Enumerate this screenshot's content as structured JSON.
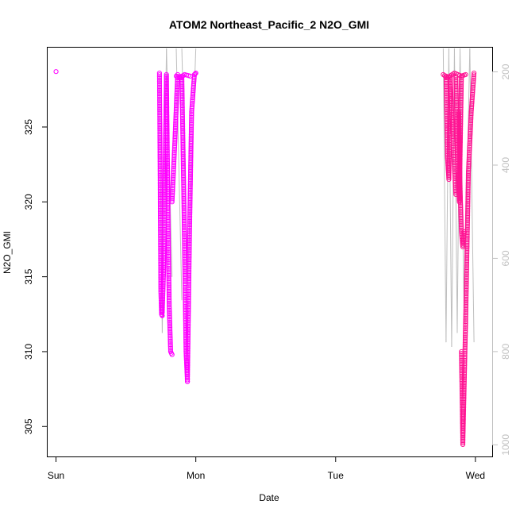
{
  "chart_data": {
    "type": "scatter",
    "title": "ATOM2 Northeast_Pacific_2 N2O_GMI",
    "xlabel": "Date",
    "ylabel": "N2O_GMI",
    "x_ticks": [
      "Sun",
      "Mon",
      "Tue",
      "Wed"
    ],
    "y_ticks": [
      305,
      310,
      315,
      320,
      325
    ],
    "y2_ticks": [
      200,
      400,
      600,
      800,
      1000
    ],
    "xlim_days": [
      -0.06,
      3.12
    ],
    "ylim": [
      303.0,
      330.3
    ],
    "y2lim": [
      148,
      1025
    ],
    "y2_inverted": true,
    "colors": {
      "early": "#ff00ff",
      "late": "#ff1493",
      "pressure_line": "#bebebe"
    },
    "grid": false,
    "legend": "none",
    "series": [
      {
        "day_range": [
          0.0,
          0.0
        ],
        "points": [
          [
            0.0,
            328.7
          ]
        ]
      },
      {
        "day_range": [
          0.74,
          0.76
        ],
        "points": [
          [
            0.74,
            328.6
          ],
          [
            0.745,
            322.0
          ],
          [
            0.75,
            314.0
          ],
          [
            0.755,
            312.5
          ],
          [
            0.76,
            312.4
          ]
        ]
      },
      {
        "day_range": [
          0.76,
          0.79
        ],
        "points": [
          [
            0.76,
            312.6
          ],
          [
            0.77,
            315.5
          ],
          [
            0.78,
            322.0
          ],
          [
            0.79,
            328.5
          ]
        ]
      },
      {
        "day_range": [
          0.79,
          0.83
        ],
        "points": [
          [
            0.79,
            328.4
          ],
          [
            0.8,
            320.0
          ],
          [
            0.81,
            313.0
          ],
          [
            0.82,
            310.0
          ],
          [
            0.83,
            309.8
          ]
        ]
      },
      {
        "day_range": [
          0.83,
          0.87
        ],
        "points": [
          [
            0.83,
            320.0
          ],
          [
            0.84,
            322.0
          ],
          [
            0.85,
            324.0
          ],
          [
            0.87,
            328.5
          ]
        ]
      },
      {
        "day_range": [
          0.86,
          0.96
        ],
        "points": [
          [
            0.86,
            328.4
          ],
          [
            0.89,
            328.3
          ],
          [
            0.92,
            328.5
          ],
          [
            0.96,
            328.4
          ]
        ]
      },
      {
        "day_range": [
          0.9,
          0.94
        ],
        "points": [
          [
            0.9,
            328.4
          ],
          [
            0.915,
            320.0
          ],
          [
            0.93,
            310.0
          ],
          [
            0.94,
            308.0
          ]
        ]
      },
      {
        "day_range": [
          0.94,
          1.0
        ],
        "points": [
          [
            0.94,
            308.0
          ],
          [
            0.955,
            318.0
          ],
          [
            0.97,
            326.0
          ],
          [
            0.99,
            328.5
          ],
          [
            1.0,
            328.6
          ]
        ]
      },
      {
        "day_range": [
          2.77,
          2.93
        ],
        "points": [
          [
            2.77,
            328.5
          ],
          [
            2.8,
            328.3
          ],
          [
            2.85,
            328.6
          ],
          [
            2.9,
            328.4
          ],
          [
            2.93,
            328.5
          ]
        ]
      },
      {
        "day_range": [
          2.79,
          2.82
        ],
        "points": [
          [
            2.79,
            328.4
          ],
          [
            2.8,
            323.0
          ],
          [
            2.81,
            321.5
          ],
          [
            2.82,
            328.3
          ]
        ]
      },
      {
        "day_range": [
          2.82,
          2.86
        ],
        "points": [
          [
            2.82,
            328.3
          ],
          [
            2.84,
            324.0
          ],
          [
            2.86,
            320.5
          ]
        ]
      },
      {
        "day_range": [
          2.86,
          2.9
        ],
        "points": [
          [
            2.86,
            328.4
          ],
          [
            2.875,
            322.0
          ],
          [
            2.885,
            320.0
          ],
          [
            2.9,
            328.4
          ]
        ]
      },
      {
        "day_range": [
          2.88,
          2.92
        ],
        "points": [
          [
            2.88,
            326.0
          ],
          [
            2.89,
            321.0
          ],
          [
            2.9,
            318.0
          ],
          [
            2.91,
            317.0
          ],
          [
            2.92,
            318.0
          ]
        ]
      },
      {
        "day_range": [
          2.9,
          2.99
        ],
        "points": [
          [
            2.9,
            310.0
          ],
          [
            2.91,
            303.8
          ],
          [
            2.93,
            312.0
          ],
          [
            2.95,
            322.0
          ],
          [
            2.97,
            326.0
          ],
          [
            2.99,
            328.6
          ]
        ]
      }
    ]
  }
}
